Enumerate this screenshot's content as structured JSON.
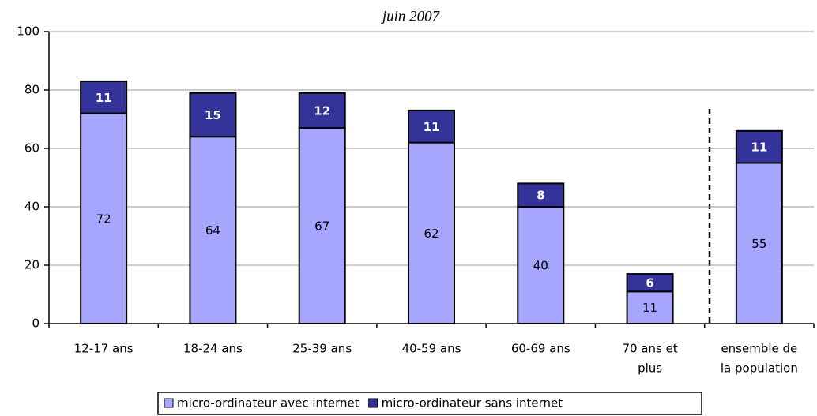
{
  "chart_data": {
    "type": "stacked_bar",
    "subtitle": "juin 2007",
    "categories": [
      [
        "12-17 ans"
      ],
      [
        "18-24 ans"
      ],
      [
        "25-39 ans"
      ],
      [
        "40-59 ans"
      ],
      [
        "60-69 ans"
      ],
      [
        "70 ans et",
        "plus"
      ],
      [
        "ensemble de",
        "la population"
      ]
    ],
    "series": [
      {
        "name": "micro-ordinateur avec internet",
        "color": "#a6a6ff",
        "values": [
          72,
          64,
          67,
          62,
          40,
          11,
          55
        ]
      },
      {
        "name": "micro-ordinateur sans internet",
        "color": "#333399",
        "values": [
          11,
          15,
          12,
          11,
          8,
          6,
          11
        ]
      }
    ],
    "ylim": [
      0,
      100
    ],
    "yticks": [
      0,
      20,
      40,
      60,
      80,
      100
    ],
    "grid": true,
    "legend": "bottom"
  }
}
